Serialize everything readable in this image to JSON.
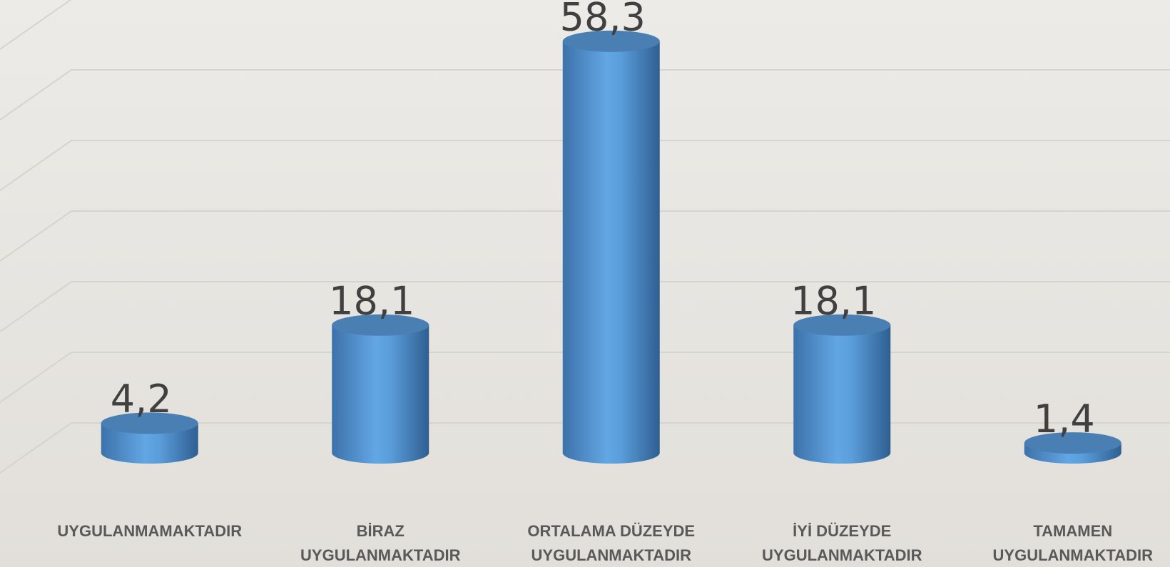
{
  "chart_data": {
    "type": "bar",
    "categories": [
      "UYGULANMAMAKTADIR",
      "BİRAZ UYGULANMAKTADIR",
      "ORTALAMA DÜZEYDE UYGULANMAKTADIR",
      "İYİ DÜZEYDE UYGULANMAKTADIR",
      "TAMAMEN UYGULANMAKTADIR"
    ],
    "values": [
      4.2,
      18.1,
      58.3,
      18.1,
      1.4
    ],
    "value_labels": [
      "4,2",
      "18,1",
      "58,3",
      "18,1",
      "1,4"
    ],
    "color": "#5b9bd5",
    "ylim": [
      0,
      60
    ],
    "yticks": [
      0,
      10,
      20,
      30,
      40,
      50,
      60
    ],
    "grid": true
  }
}
